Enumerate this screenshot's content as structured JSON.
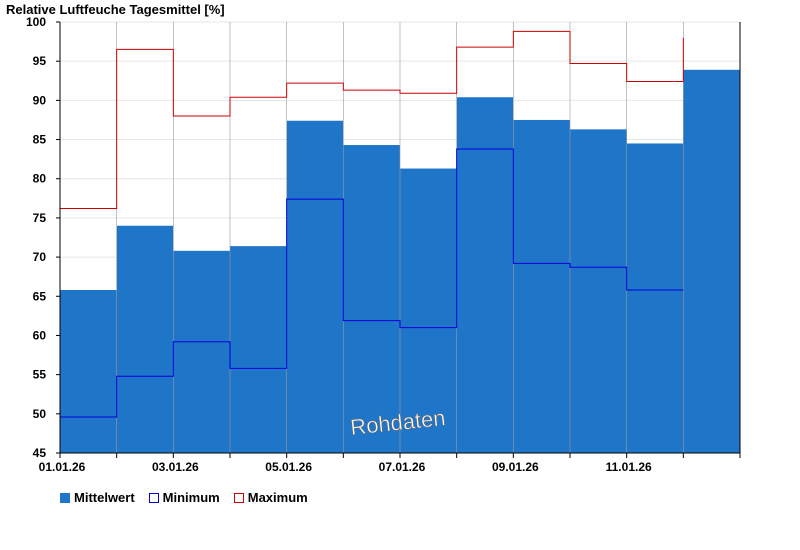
{
  "chart_data": {
    "type": "bar",
    "title": "Relative Luftfeuche Tagesmittel [%]",
    "watermark": "Rohdaten",
    "ylim": [
      45,
      100
    ],
    "yticks": [
      45,
      50,
      55,
      60,
      65,
      70,
      75,
      80,
      85,
      90,
      95,
      100
    ],
    "xtick_labels": [
      "01.01.26",
      "03.01.26",
      "05.01.26",
      "07.01.26",
      "09.01.26",
      "11.01.26"
    ],
    "grid": true,
    "legend_position": "bottom-left",
    "categories": [
      "01.01.26",
      "02.01.26",
      "03.01.26",
      "04.01.26",
      "05.01.26",
      "06.01.26",
      "07.01.26",
      "08.01.26",
      "09.01.26",
      "10.01.26",
      "11.01.26",
      "12.01.26"
    ],
    "series": [
      {
        "name": "Mittelwert",
        "color": "#1f76c9",
        "values": [
          65.8,
          74.0,
          70.8,
          71.4,
          87.4,
          84.3,
          81.3,
          90.4,
          87.5,
          86.3,
          84.5,
          93.9
        ]
      },
      {
        "name": "Minimum",
        "color": "#0000dd",
        "values": [
          49.6,
          54.8,
          59.2,
          55.8,
          77.4,
          61.9,
          61.0,
          83.8,
          69.2,
          68.7,
          65.8,
          null
        ]
      },
      {
        "name": "Maximum",
        "color": "#cc0000",
        "values": [
          76.2,
          96.5,
          88.0,
          90.4,
          92.2,
          91.3,
          90.9,
          96.8,
          98.8,
          94.7,
          92.4,
          null
        ],
        "last_marker": 98.0
      }
    ]
  }
}
